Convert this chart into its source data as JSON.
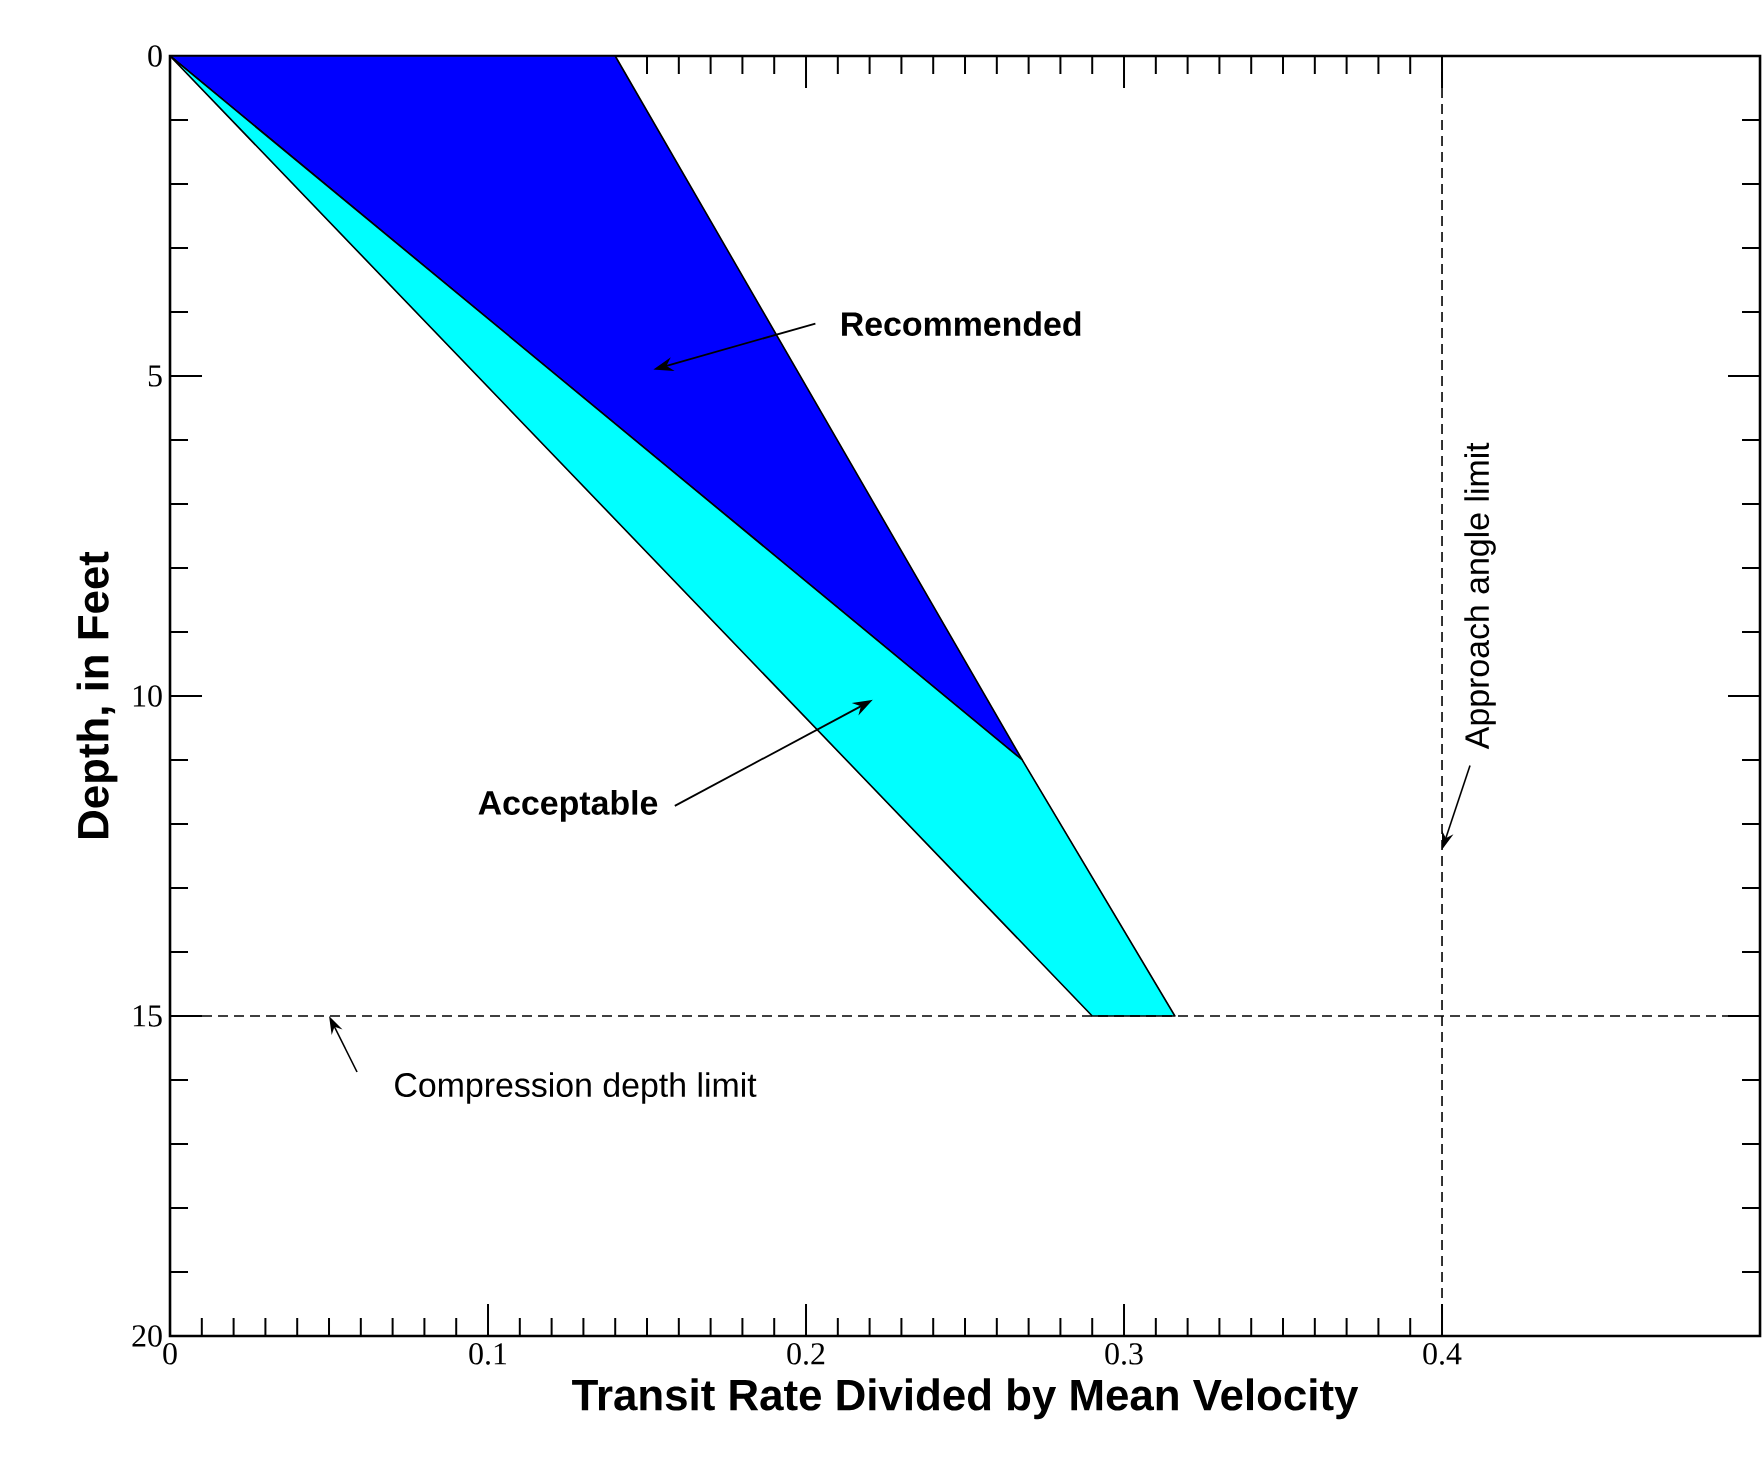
{
  "chart_data": {
    "type": "area",
    "xlabel": "Transit Rate Divided by Mean Velocity",
    "ylabel": "Depth, in Feet",
    "series": [
      {
        "color": "#0000ff",
        "x": [
          0,
          0.14,
          0.268,
          0
        ],
        "values": [
          0,
          0,
          11,
          0
        ]
      },
      {
        "color": "#00ffff",
        "x": [
          0,
          0.268,
          0.316,
          0.29,
          0
        ],
        "values": [
          0,
          11,
          15,
          15,
          0
        ]
      }
    ],
    "xlim": [
      0,
      0.5
    ],
    "ylim": [
      20,
      0
    ],
    "xticks": [
      0,
      0.1,
      0.2,
      0.3,
      0.4
    ],
    "yticks": [
      0,
      5,
      10,
      15,
      20
    ],
    "ref_lines": [
      {
        "axis": "y",
        "value": 15,
        "label": "Compression depth limit",
        "color": "#000000",
        "line_style": "dashed"
      },
      {
        "axis": "x",
        "value": 0.4,
        "label": "Approach angle limit",
        "color": "#000000",
        "line_style": "dashed"
      }
    ],
    "annotations": [
      "Recommended",
      "Acceptable"
    ],
    "grid": false
  }
}
